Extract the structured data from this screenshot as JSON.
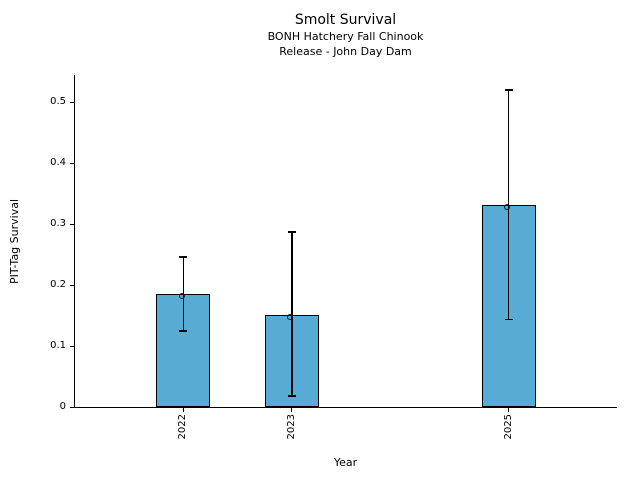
{
  "chart_data": {
    "type": "bar",
    "title": "Smolt Survival",
    "subtitle_lines": [
      "BONH Hatchery Fall Chinook",
      "Release - John Day Dam"
    ],
    "xlabel": "Year",
    "ylabel": "PIT-Tag Survival",
    "categories": [
      "2022",
      "2023",
      "2025"
    ],
    "x": [
      2022,
      2023,
      2025
    ],
    "values": [
      0.185,
      0.151,
      0.331
    ],
    "error_low": [
      0.125,
      0.018,
      0.144
    ],
    "error_high": [
      0.246,
      0.287,
      0.52
    ],
    "xlim": [
      2021,
      2026
    ],
    "ylim": [
      0,
      0.545
    ],
    "yticks": [
      0,
      0.1,
      0.2,
      0.3,
      0.4,
      0.5
    ],
    "ytick_labels": [
      "0",
      "0.1",
      "0.2",
      "0.3",
      "0.4",
      "0.5"
    ],
    "bar_width": 0.5,
    "bar_color": "#58ABD4",
    "edge_color": "#000000",
    "error_color": "#000000",
    "marker": "open-circle",
    "grid": false,
    "legend": "none"
  }
}
